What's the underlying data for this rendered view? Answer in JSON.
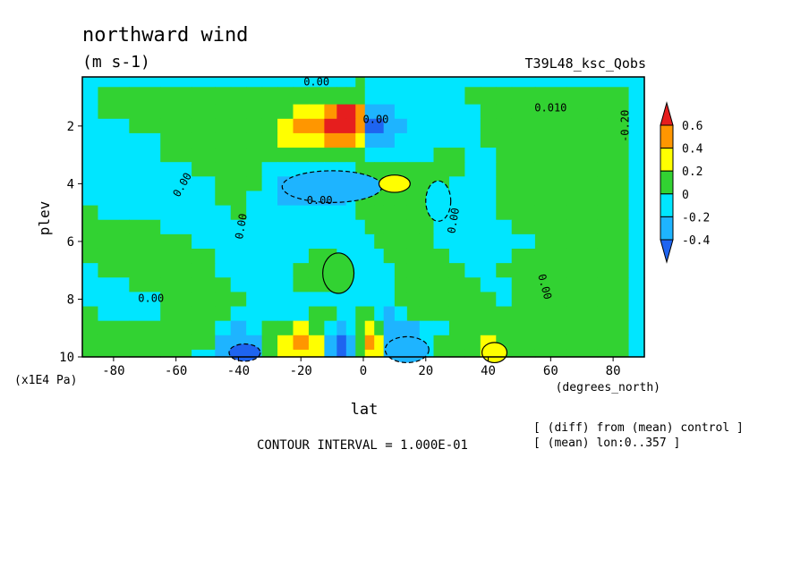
{
  "colors": {
    "c_neg05": "#1e64f0",
    "c_neg03": "#1eb4ff",
    "c_neg01": "#00e6ff",
    "c_pos01": "#32d232",
    "c_pos03": "#ffff00",
    "c_pos05": "#ff9600",
    "c_pos07": "#e61e1e"
  },
  "chart_data": {
    "type": "heatmap",
    "title": "northward wind",
    "units": "(m s-1)",
    "experiment": "T39L48_ksc_Qobs",
    "xlabel": "lat",
    "x_units": "(degrees_north)",
    "ylabel": "plev",
    "y_units": "(x1E4 Pa)",
    "xlim": [
      -90,
      90
    ],
    "ylim": [
      10,
      0.3
    ],
    "x_ticks": [
      "-80",
      "-60",
      "-40",
      "-20",
      "0",
      "20",
      "40",
      "60",
      "80"
    ],
    "y_ticks": [
      "2",
      "4",
      "6",
      "8",
      "10"
    ],
    "colorbar": {
      "levels": [
        "0.6",
        "0.4",
        "0.2",
        "0",
        "-0.2",
        "-0.4"
      ],
      "bin_edges": [
        -0.4,
        -0.2,
        0,
        0.2,
        0.4,
        0.6
      ]
    },
    "contour_labels": [
      "0.00",
      "0.00",
      "0.00",
      "0.00",
      "0.00",
      "0.00",
      "0.00",
      "0.010",
      "-0.20",
      "0.00"
    ],
    "contour_interval": "CONTOUR INTERVAL = 1.000E-01",
    "notes": [
      "[ (diff) from (mean) control ]",
      "[ (mean) lon:0..357 ]"
    ],
    "lat": [
      -90,
      -80,
      -70,
      -60,
      -50,
      -45,
      -40,
      -35,
      -30,
      -25,
      -20,
      -15,
      -10,
      -7,
      -4,
      -1,
      2,
      5,
      8,
      12,
      16,
      20,
      25,
      30,
      35,
      40,
      45,
      50,
      60,
      70,
      80,
      90
    ],
    "plev": [
      0.3,
      1,
      1.5,
      2,
      2.5,
      3,
      3.5,
      4,
      4.5,
      5,
      5.5,
      6,
      6.5,
      7,
      7.5,
      8,
      8.5,
      9,
      9.5,
      10
    ],
    "values": [
      [
        -0.05,
        -0.05,
        -0.05,
        -0.05,
        -0.05,
        -0.05,
        -0.05,
        -0.05,
        -0.05,
        -0.05,
        -0.05,
        -0.05,
        -0.05,
        -0.05,
        -0.05,
        0.05,
        -0.05,
        -0.05,
        -0.05,
        -0.05,
        -0.05,
        -0.05,
        -0.05,
        -0.05,
        -0.05,
        -0.05,
        -0.05,
        -0.05,
        -0.05,
        -0.05,
        -0.05,
        -0.05
      ],
      [
        -0.05,
        0.05,
        0.05,
        0.05,
        0.05,
        0.05,
        0.05,
        0.05,
        0.05,
        0.05,
        0.05,
        0.05,
        0.05,
        0.05,
        0.05,
        0.05,
        -0.05,
        -0.05,
        -0.05,
        -0.05,
        -0.05,
        -0.05,
        -0.05,
        -0.05,
        0.05,
        0.05,
        0.05,
        0.05,
        0.05,
        0.05,
        0.05,
        -0.05
      ],
      [
        -0.05,
        0.05,
        0.05,
        0.05,
        0.05,
        0.05,
        0.05,
        0.05,
        0.05,
        0.05,
        0.25,
        0.25,
        0.45,
        0.65,
        0.65,
        0.45,
        -0.25,
        -0.25,
        -0.15,
        -0.05,
        -0.05,
        -0.05,
        -0.05,
        -0.05,
        -0.05,
        0.05,
        0.05,
        0.05,
        0.05,
        0.05,
        0.05,
        -0.05
      ],
      [
        -0.05,
        -0.05,
        0.05,
        0.05,
        0.05,
        0.05,
        0.05,
        0.05,
        0.05,
        0.25,
        0.45,
        0.45,
        0.65,
        0.65,
        0.65,
        0.45,
        -0.45,
        -0.45,
        -0.25,
        -0.15,
        -0.05,
        -0.05,
        -0.05,
        -0.05,
        -0.05,
        0.05,
        0.05,
        0.05,
        0.05,
        0.05,
        0.05,
        -0.05
      ],
      [
        -0.05,
        -0.05,
        -0.05,
        0.05,
        0.05,
        0.05,
        0.05,
        0.05,
        0.05,
        0.25,
        0.25,
        0.25,
        0.45,
        0.45,
        0.45,
        0.25,
        -0.25,
        -0.25,
        -0.15,
        -0.05,
        -0.05,
        -0.05,
        -0.05,
        -0.05,
        -0.05,
        0.05,
        0.05,
        0.05,
        0.05,
        0.05,
        0.05,
        -0.05
      ],
      [
        -0.05,
        -0.05,
        -0.05,
        0.05,
        0.05,
        0.05,
        0.05,
        0.05,
        0.05,
        0.05,
        0.05,
        0.05,
        0.05,
        0.05,
        0.05,
        0.05,
        -0.05,
        -0.05,
        -0.05,
        -0.05,
        -0.05,
        -0.05,
        0.05,
        0.05,
        -0.05,
        -0.05,
        0.05,
        0.05,
        0.05,
        0.05,
        0.05,
        -0.05
      ],
      [
        -0.05,
        -0.05,
        -0.05,
        -0.05,
        0.05,
        0.05,
        0.05,
        0.05,
        -0.05,
        -0.05,
        -0.05,
        -0.05,
        -0.05,
        -0.05,
        -0.05,
        0.05,
        0.05,
        0.05,
        0.05,
        0.05,
        0.05,
        0.05,
        0.05,
        0.05,
        -0.05,
        -0.05,
        0.05,
        0.05,
        0.05,
        0.05,
        0.05,
        -0.05
      ],
      [
        -0.05,
        -0.05,
        -0.05,
        -0.05,
        -0.05,
        0.05,
        0.05,
        0.05,
        -0.05,
        -0.15,
        -0.15,
        -0.25,
        -0.15,
        -0.15,
        -0.05,
        0.05,
        0.05,
        0.05,
        0.25,
        0.05,
        0.05,
        0.05,
        0.05,
        -0.05,
        -0.05,
        -0.05,
        0.05,
        0.05,
        0.05,
        0.05,
        0.05,
        -0.05
      ],
      [
        -0.05,
        -0.05,
        -0.05,
        -0.05,
        -0.05,
        0.05,
        0.05,
        -0.05,
        -0.05,
        -0.15,
        -0.25,
        -0.25,
        -0.25,
        -0.15,
        -0.05,
        0.05,
        0.05,
        0.05,
        0.05,
        0.05,
        0.05,
        0.05,
        -0.05,
        -0.05,
        -0.05,
        -0.05,
        0.05,
        0.05,
        0.05,
        0.05,
        0.05,
        -0.05
      ],
      [
        0.05,
        -0.05,
        -0.05,
        -0.05,
        -0.05,
        -0.05,
        0.05,
        -0.05,
        -0.05,
        -0.05,
        -0.05,
        -0.05,
        -0.05,
        -0.05,
        -0.05,
        0.05,
        0.05,
        0.05,
        0.05,
        0.05,
        0.05,
        0.05,
        -0.05,
        -0.05,
        -0.05,
        -0.05,
        0.05,
        0.05,
        0.05,
        0.05,
        0.05,
        -0.05
      ],
      [
        0.05,
        0.05,
        0.05,
        -0.05,
        -0.05,
        -0.05,
        -0.05,
        -0.05,
        -0.05,
        -0.05,
        -0.05,
        -0.05,
        -0.05,
        -0.05,
        -0.05,
        -0.05,
        0.05,
        0.05,
        0.05,
        0.05,
        0.05,
        0.05,
        -0.05,
        -0.05,
        -0.05,
        -0.05,
        -0.05,
        0.05,
        0.05,
        0.05,
        0.05,
        -0.05
      ],
      [
        0.05,
        0.05,
        0.05,
        0.05,
        -0.05,
        -0.05,
        -0.05,
        -0.05,
        -0.05,
        -0.05,
        -0.05,
        -0.05,
        -0.05,
        -0.05,
        -0.05,
        -0.05,
        -0.05,
        0.05,
        0.05,
        0.05,
        0.05,
        0.05,
        -0.05,
        -0.05,
        -0.05,
        -0.05,
        -0.05,
        -0.05,
        0.05,
        0.05,
        0.05,
        -0.05
      ],
      [
        0.05,
        0.05,
        0.05,
        0.05,
        0.05,
        -0.05,
        -0.05,
        -0.05,
        -0.05,
        -0.05,
        -0.05,
        0.05,
        0.05,
        -0.05,
        -0.05,
        -0.05,
        -0.05,
        -0.05,
        0.05,
        0.05,
        0.05,
        0.05,
        0.05,
        -0.05,
        -0.05,
        -0.05,
        -0.05,
        0.05,
        0.05,
        0.05,
        0.05,
        -0.05
      ],
      [
        -0.05,
        0.05,
        0.05,
        0.05,
        0.05,
        -0.05,
        -0.05,
        -0.05,
        -0.05,
        -0.05,
        0.05,
        0.05,
        0.05,
        0.05,
        -0.05,
        -0.05,
        -0.05,
        -0.05,
        -0.05,
        0.05,
        0.05,
        0.05,
        0.05,
        0.05,
        -0.05,
        -0.05,
        0.05,
        0.05,
        0.05,
        0.05,
        0.05,
        -0.05
      ],
      [
        -0.05,
        -0.05,
        0.05,
        0.05,
        0.05,
        0.05,
        -0.05,
        -0.05,
        -0.05,
        -0.05,
        0.05,
        0.05,
        0.05,
        -0.05,
        -0.05,
        -0.05,
        -0.05,
        -0.05,
        -0.05,
        0.05,
        0.05,
        0.05,
        0.05,
        0.05,
        0.05,
        -0.05,
        -0.05,
        0.05,
        0.05,
        0.05,
        0.05,
        -0.05
      ],
      [
        -0.05,
        -0.05,
        -0.05,
        0.05,
        0.05,
        0.05,
        0.05,
        -0.05,
        -0.05,
        -0.05,
        -0.05,
        -0.05,
        -0.05,
        -0.05,
        -0.05,
        -0.05,
        -0.05,
        -0.05,
        -0.05,
        0.05,
        0.05,
        0.05,
        0.05,
        0.05,
        0.05,
        0.05,
        -0.05,
        0.05,
        0.05,
        0.05,
        0.05,
        -0.05
      ],
      [
        0.05,
        -0.05,
        -0.05,
        0.05,
        0.05,
        0.05,
        -0.05,
        -0.05,
        -0.05,
        -0.05,
        -0.05,
        0.05,
        0.05,
        -0.05,
        -0.05,
        0.05,
        0.05,
        -0.05,
        -0.15,
        -0.05,
        0.05,
        0.05,
        0.05,
        0.05,
        0.05,
        0.05,
        0.05,
        0.05,
        0.05,
        0.05,
        0.05,
        -0.05
      ],
      [
        0.05,
        0.05,
        0.05,
        0.05,
        0.05,
        -0.05,
        -0.15,
        -0.05,
        0.05,
        0.05,
        0.25,
        0.05,
        -0.05,
        -0.15,
        -0.05,
        0.05,
        0.25,
        0.05,
        -0.15,
        -0.15,
        -0.15,
        -0.05,
        -0.05,
        0.05,
        0.05,
        0.05,
        0.05,
        0.05,
        0.05,
        0.05,
        0.05,
        -0.05
      ],
      [
        0.05,
        0.05,
        0.05,
        0.05,
        0.05,
        -0.15,
        -0.25,
        -0.25,
        0.05,
        0.25,
        0.45,
        0.25,
        -0.15,
        -0.35,
        -0.15,
        0.05,
        0.45,
        0.25,
        -0.15,
        -0.25,
        -0.15,
        -0.05,
        0.05,
        0.05,
        0.05,
        0.25,
        0.05,
        0.05,
        0.05,
        0.05,
        0.05,
        -0.05
      ],
      [
        0.05,
        0.05,
        0.05,
        0.05,
        -0.05,
        -0.15,
        -0.25,
        -0.25,
        0.05,
        0.25,
        0.25,
        0.25,
        -0.15,
        -0.35,
        -0.15,
        0.05,
        0.25,
        0.25,
        -0.15,
        -0.15,
        -0.15,
        -0.05,
        0.05,
        0.05,
        0.05,
        0.25,
        0.05,
        0.05,
        0.05,
        0.05,
        0.05,
        -0.05
      ]
    ]
  },
  "overlays": [
    {
      "name": "blob-neg-upper",
      "cx": -10,
      "cy": 4.1,
      "rx": 16,
      "ry": 0.55,
      "v": -0.25
    },
    {
      "name": "blob-pos-mid",
      "cx": 10,
      "cy": 4.0,
      "rx": 5,
      "ry": 0.3,
      "v": 0.25
    },
    {
      "name": "blob-pos-low",
      "cx": -8,
      "cy": 7.1,
      "rx": 5,
      "ry": 0.7,
      "v": 0.05
    },
    {
      "name": "blob-neg-right",
      "cx": 24,
      "cy": 4.6,
      "rx": 4,
      "ry": 0.7,
      "v": -0.05
    },
    {
      "name": "blob-pos-right",
      "cx": 42,
      "cy": 9.85,
      "rx": 4,
      "ry": 0.35,
      "v": 0.25
    },
    {
      "name": "blob-neg-left",
      "cx": -38,
      "cy": 9.85,
      "rx": 5,
      "ry": 0.3,
      "v": -0.35
    },
    {
      "name": "blob-neg-center",
      "cx": 14,
      "cy": 9.75,
      "rx": 7,
      "ry": 0.45,
      "v": -0.25
    }
  ]
}
